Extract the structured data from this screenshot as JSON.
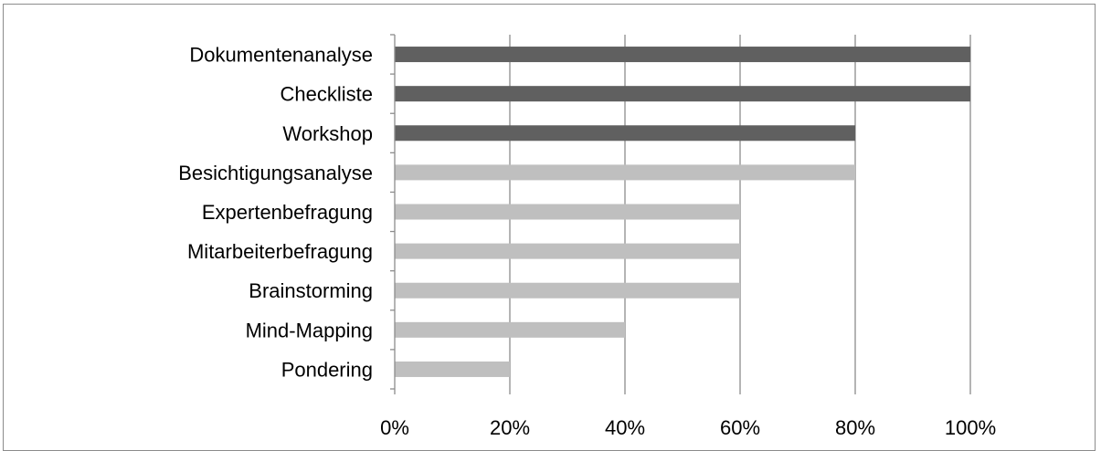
{
  "chart_data": {
    "type": "bar",
    "orientation": "horizontal",
    "title": "",
    "xlabel": "",
    "ylabel": "",
    "categories": [
      "Dokumentenanalyse",
      "Checkliste",
      "Workshop",
      "Besichtigungsanalyse",
      "Expertenbefragung",
      "Mitarbeiterbefragung",
      "Brainstorming",
      "Mind-Mapping",
      "Pondering"
    ],
    "values": [
      100,
      100,
      80,
      80,
      60,
      60,
      60,
      40,
      20
    ],
    "highlight": [
      true,
      true,
      true,
      false,
      false,
      false,
      false,
      false,
      false
    ],
    "xlim": [
      0,
      100
    ],
    "x_ticks": [
      0,
      20,
      40,
      60,
      80,
      100
    ],
    "x_tick_labels": [
      "0%",
      "20%",
      "40%",
      "60%",
      "80%",
      "100%"
    ],
    "grid": true,
    "legend": "none",
    "colors": {
      "highlight_bar": "#606060",
      "normal_bar": "#bfbfbf",
      "gridline": "#8c8c8c",
      "axis": "#8c8c8c"
    }
  }
}
